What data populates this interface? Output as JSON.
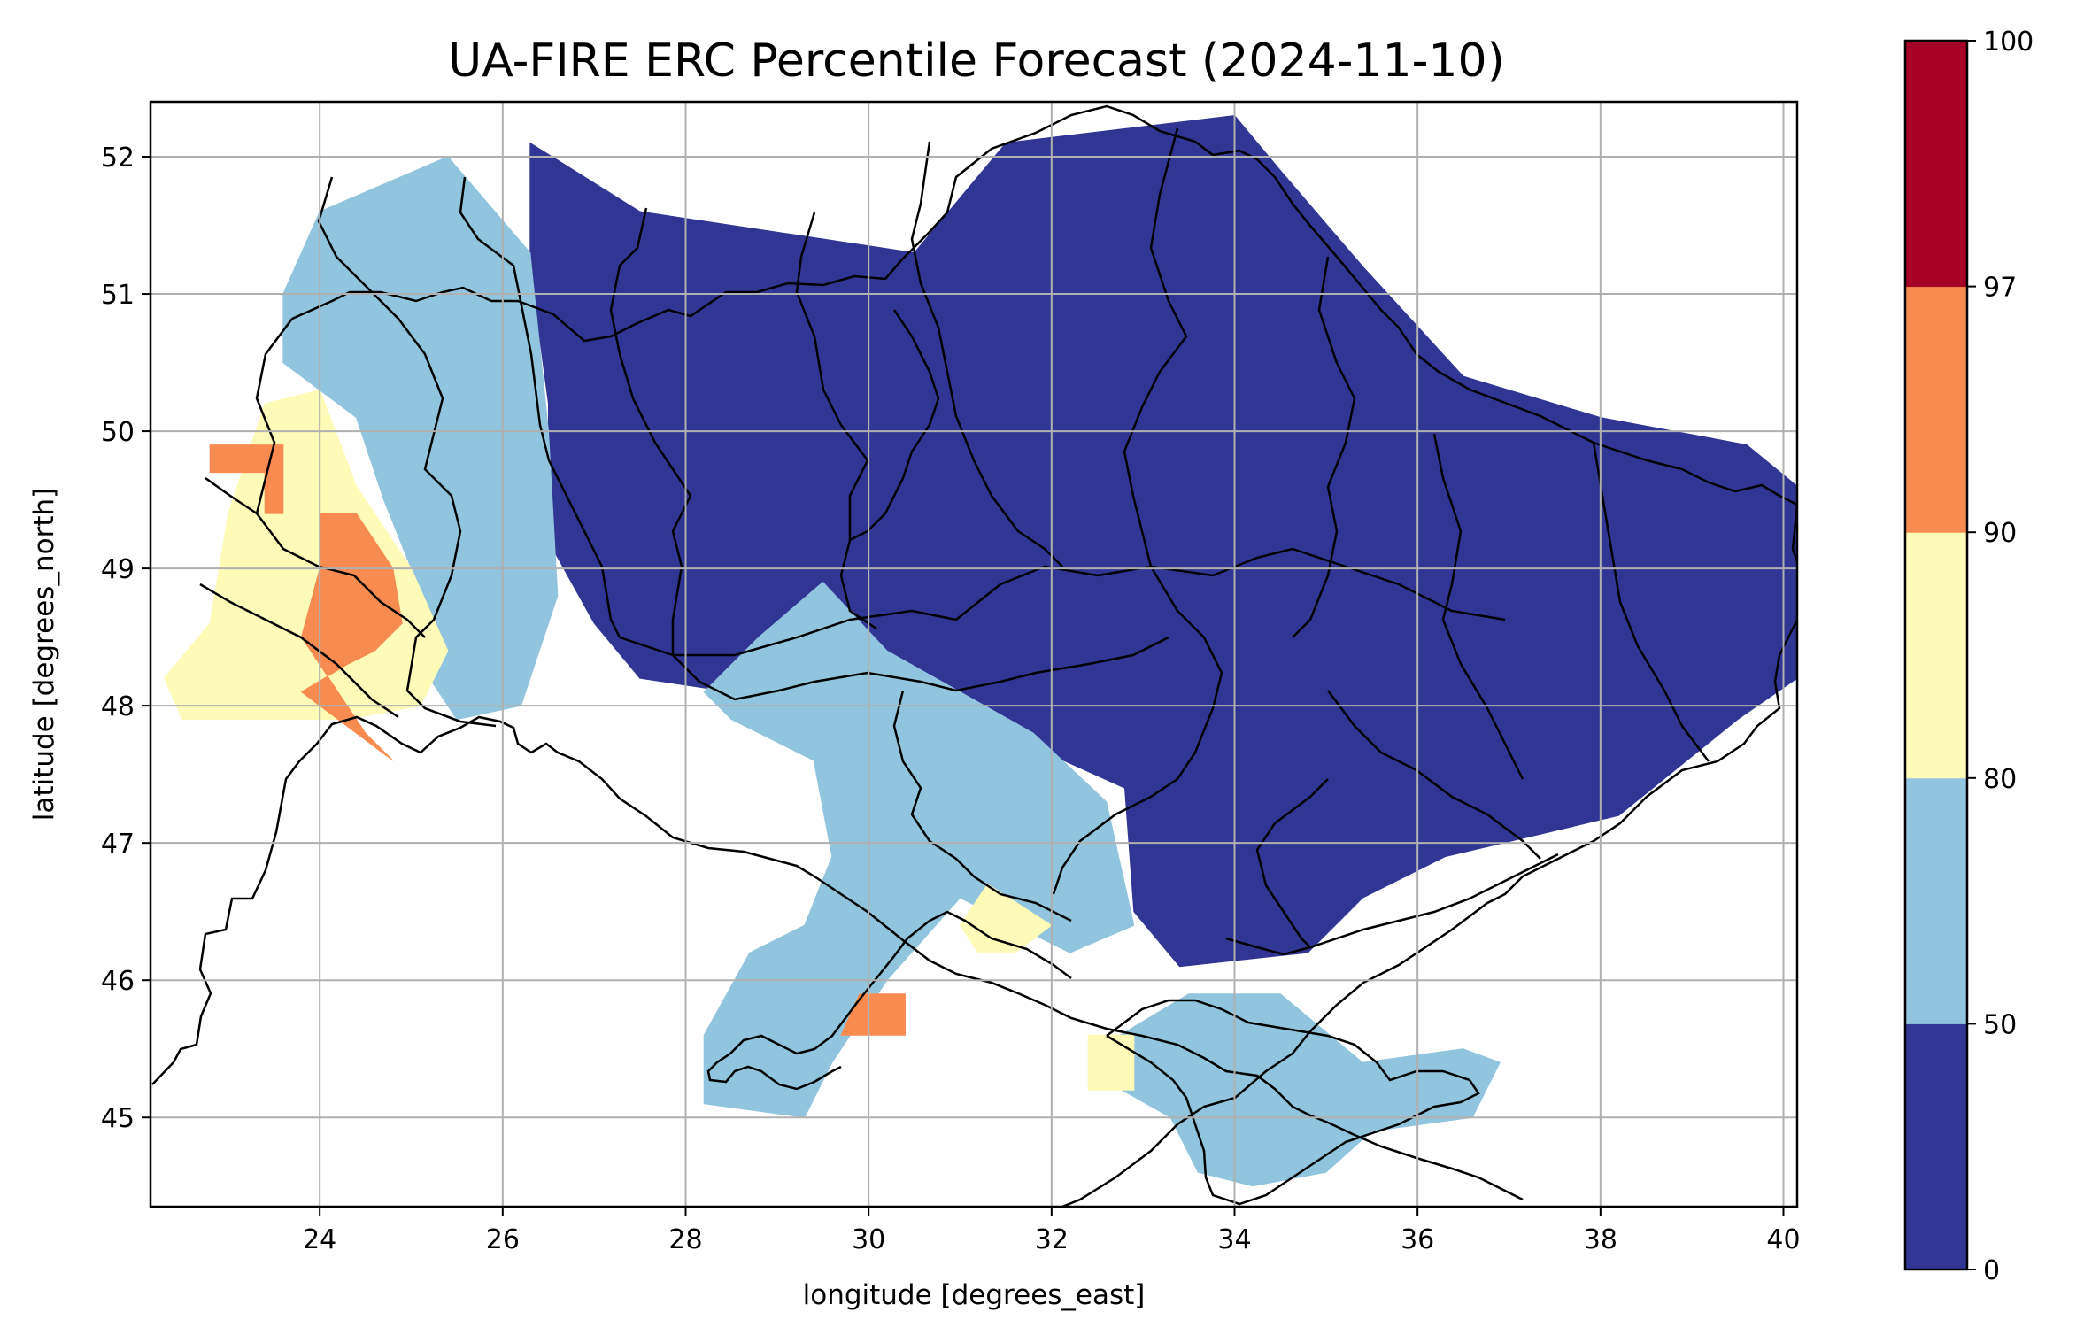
{
  "title": "UA-FIRE ERC Percentile Forecast (2024-11-10)",
  "x_axis": {
    "label": "longitude [degrees_east]",
    "range": [
      22.15,
      40.15
    ],
    "ticks": [
      {
        "value": 24,
        "label": "24"
      },
      {
        "value": 26,
        "label": "26"
      },
      {
        "value": 28,
        "label": "28"
      },
      {
        "value": 30,
        "label": "30"
      },
      {
        "value": 32,
        "label": "32"
      },
      {
        "value": 34,
        "label": "34"
      },
      {
        "value": 36,
        "label": "36"
      },
      {
        "value": 38,
        "label": "38"
      },
      {
        "value": 40,
        "label": "40"
      }
    ]
  },
  "y_axis": {
    "label": "latitude [degrees_north]",
    "range": [
      44.35,
      52.4
    ],
    "ticks": [
      {
        "value": 45,
        "label": "45"
      },
      {
        "value": 46,
        "label": "46"
      },
      {
        "value": 47,
        "label": "47"
      },
      {
        "value": 48,
        "label": "48"
      },
      {
        "value": 49,
        "label": "49"
      },
      {
        "value": 50,
        "label": "50"
      },
      {
        "value": 51,
        "label": "51"
      },
      {
        "value": 52,
        "label": "52"
      }
    ]
  },
  "grid": true,
  "colorbar": {
    "bounds": [
      0,
      50,
      80,
      90,
      97,
      100
    ],
    "colors": [
      "#313695",
      "#91c4de",
      "#fefab8",
      "#f88c50",
      "#a50026"
    ],
    "tick_labels": [
      "0",
      "50",
      "80",
      "90",
      "97",
      "100"
    ]
  },
  "map": {
    "cell_size_deg": 0.25,
    "colors": {
      "0": "#313695",
      "1": "#91c4de",
      "2": "#fefab8",
      "3": "#f88c50"
    },
    "regions": [
      {
        "class": 0,
        "note_lon_range": [
          26.3,
          40.15
        ],
        "coarse_polygon": [
          [
            26.3,
            52.1
          ],
          [
            27.5,
            51.6
          ],
          [
            30.5,
            51.3
          ],
          [
            31.5,
            52.1
          ],
          [
            34.0,
            52.3
          ],
          [
            34.5,
            51.9
          ],
          [
            35.4,
            51.2
          ],
          [
            36.5,
            50.4
          ],
          [
            38.0,
            50.1
          ],
          [
            39.6,
            49.9
          ],
          [
            40.15,
            49.6
          ],
          [
            40.15,
            48.2
          ],
          [
            39.5,
            47.9
          ],
          [
            38.2,
            47.2
          ],
          [
            36.3,
            46.9
          ],
          [
            35.4,
            46.6
          ],
          [
            34.8,
            46.2
          ],
          [
            33.4,
            46.1
          ],
          [
            32.9,
            46.5
          ],
          [
            32.8,
            47.4
          ],
          [
            31.8,
            47.7
          ],
          [
            31.0,
            47.9
          ],
          [
            30.0,
            48.1
          ],
          [
            29.2,
            48.4
          ],
          [
            28.5,
            48.1
          ],
          [
            27.5,
            48.2
          ],
          [
            27.0,
            48.6
          ],
          [
            26.5,
            49.2
          ],
          [
            26.5,
            50.2
          ],
          [
            26.3,
            51.2
          ]
        ]
      },
      {
        "class": 1,
        "coarse_polygon": [
          [
            25.4,
            52.0
          ],
          [
            26.3,
            51.3
          ],
          [
            26.5,
            50.0
          ],
          [
            26.6,
            48.8
          ],
          [
            26.2,
            48.0
          ],
          [
            25.5,
            47.9
          ],
          [
            25.2,
            48.2
          ],
          [
            25.0,
            49.0
          ],
          [
            24.7,
            49.5
          ],
          [
            24.4,
            50.1
          ],
          [
            23.6,
            50.5
          ],
          [
            23.6,
            51.0
          ],
          [
            24.0,
            51.6
          ]
        ]
      },
      {
        "class": 1,
        "coarse_polygon": [
          [
            28.2,
            48.1
          ],
          [
            28.8,
            48.5
          ],
          [
            29.5,
            48.9
          ],
          [
            30.2,
            48.4
          ],
          [
            31.0,
            48.1
          ],
          [
            31.8,
            47.8
          ],
          [
            32.6,
            47.3
          ],
          [
            32.9,
            46.4
          ],
          [
            32.2,
            46.2
          ],
          [
            31.0,
            46.6
          ],
          [
            30.2,
            46.0
          ],
          [
            29.6,
            45.4
          ],
          [
            29.3,
            45.0
          ],
          [
            28.2,
            45.1
          ],
          [
            28.2,
            45.6
          ],
          [
            28.7,
            46.2
          ],
          [
            29.3,
            46.4
          ],
          [
            29.6,
            46.9
          ],
          [
            29.4,
            47.6
          ],
          [
            28.5,
            47.9
          ]
        ]
      },
      {
        "class": 1,
        "coarse_polygon": [
          [
            32.5,
            45.5
          ],
          [
            33.5,
            45.9
          ],
          [
            34.5,
            45.9
          ],
          [
            35.4,
            45.4
          ],
          [
            36.5,
            45.5
          ],
          [
            36.9,
            45.4
          ],
          [
            36.6,
            45.0
          ],
          [
            35.5,
            44.9
          ],
          [
            35.0,
            44.6
          ],
          [
            34.2,
            44.5
          ],
          [
            33.6,
            44.6
          ],
          [
            33.3,
            45.0
          ],
          [
            32.5,
            45.3
          ]
        ]
      },
      {
        "class": 2,
        "coarse_polygon": [
          [
            22.3,
            48.2
          ],
          [
            22.8,
            48.6
          ],
          [
            23.0,
            49.4
          ],
          [
            23.4,
            50.2
          ],
          [
            24.0,
            50.3
          ],
          [
            24.4,
            49.6
          ],
          [
            25.0,
            49.0
          ],
          [
            25.4,
            48.4
          ],
          [
            25.1,
            48.0
          ],
          [
            24.3,
            47.9
          ],
          [
            23.5,
            47.9
          ],
          [
            22.5,
            47.9
          ]
        ]
      },
      {
        "class": 2,
        "coarse_polygon": [
          [
            31.0,
            46.4
          ],
          [
            31.3,
            46.7
          ],
          [
            32.0,
            46.4
          ],
          [
            31.6,
            46.2
          ],
          [
            31.2,
            46.2
          ]
        ]
      },
      {
        "class": 2,
        "coarse_polygon": [
          [
            32.4,
            45.2
          ],
          [
            32.4,
            45.6
          ],
          [
            32.9,
            45.6
          ],
          [
            32.9,
            45.2
          ]
        ]
      },
      {
        "class": 3,
        "coarse_polygon": [
          [
            22.8,
            49.9
          ],
          [
            22.8,
            49.7
          ],
          [
            23.4,
            49.7
          ],
          [
            23.4,
            49.4
          ],
          [
            23.6,
            49.4
          ],
          [
            23.6,
            49.9
          ]
        ]
      },
      {
        "class": 3,
        "coarse_polygon": [
          [
            24.0,
            49.4
          ],
          [
            24.4,
            49.4
          ],
          [
            24.8,
            49.0
          ],
          [
            24.9,
            48.6
          ],
          [
            24.6,
            48.4
          ],
          [
            24.3,
            48.3
          ],
          [
            23.8,
            48.1
          ],
          [
            24.2,
            47.9
          ],
          [
            24.8,
            47.6
          ],
          [
            24.5,
            47.8
          ],
          [
            23.8,
            48.5
          ],
          [
            24.0,
            49.0
          ]
        ]
      },
      {
        "class": 3,
        "coarse_polygon": [
          [
            29.7,
            45.6
          ],
          [
            29.9,
            45.9
          ],
          [
            30.4,
            45.9
          ],
          [
            30.4,
            45.6
          ]
        ]
      }
    ]
  }
}
